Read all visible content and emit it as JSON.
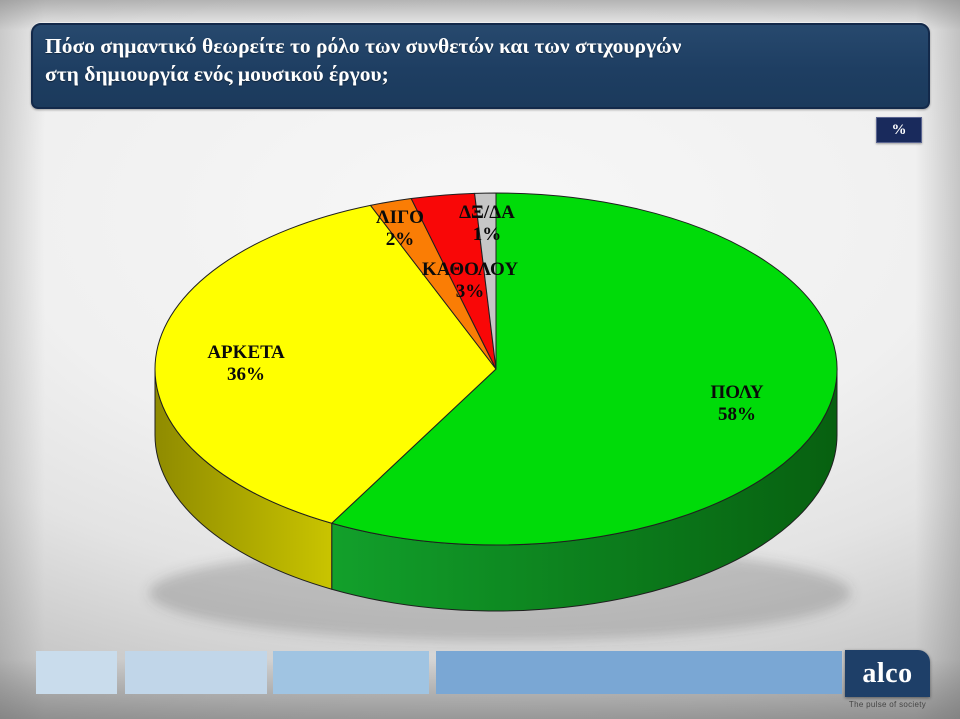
{
  "header": {
    "title_line1": "Πόσο σημαντικό θεωρείτε το ρόλο των συνθετών και των στιχουργών",
    "title_line2": "στη δημιουργία ενός μουσικού έργου;"
  },
  "unit_badge": "%",
  "chart_data": {
    "type": "pie",
    "style": "3d",
    "title": "Πόσο σημαντικό θεωρείτε το ρόλο των συνθετών και των στιχουργών στη δημιουργία ενός μουσικού έργου;",
    "unit": "%",
    "start_angle_deg": 0,
    "direction": "clockwise",
    "legend": "none",
    "categories": [
      "ΠΟΛΥ",
      "ΑΡΚΕΤΑ",
      "ΛΙΓΟ",
      "ΚΑΘΟΛΟΥ",
      "ΔΞ/ΔΑ"
    ],
    "values": [
      58,
      36,
      2,
      3,
      1
    ],
    "slices": [
      {
        "label": "ΠΟΛΥ",
        "value": 58,
        "pct": "58%",
        "color": "#00DB09",
        "side_from": "#12A02B",
        "side_to": "#076010"
      },
      {
        "label": "ΑΡΚΕΤΑ",
        "value": 36,
        "pct": "36%",
        "color": "#FFFF00",
        "side_from": "#8F8B00",
        "side_to": "#C9C400"
      },
      {
        "label": "ΛΙΓΟ",
        "value": 2,
        "pct": "2%",
        "color": "#FA7D05",
        "side_from": "#A85605",
        "side_to": "#A85605"
      },
      {
        "label": "ΚΑΘΟΛΟΥ",
        "value": 3,
        "pct": "3%",
        "color": "#F90707",
        "side_from": "#9E0606",
        "side_to": "#9E0606"
      },
      {
        "label": "ΔΞ/ΔΑ",
        "value": 1,
        "pct": "1%",
        "color": "#C6C6C6",
        "side_from": "#8C8C8C",
        "side_to": "#8C8C8C"
      }
    ]
  },
  "footer": {
    "logo_text": "alco",
    "tagline": "The pulse of society",
    "bar_colors": [
      "#C9DCEC",
      "#C1D6E9",
      "#A0C4E2",
      "#7AA7D4"
    ]
  },
  "colors": {
    "title_bar_bg": "#1E3E62",
    "title_bar_border": "#13294A",
    "badge_bg": "#192A5C",
    "logo_bg": "#1E3F68",
    "label_text": "#0A0A0A",
    "title_text": "#FFFFFF"
  }
}
